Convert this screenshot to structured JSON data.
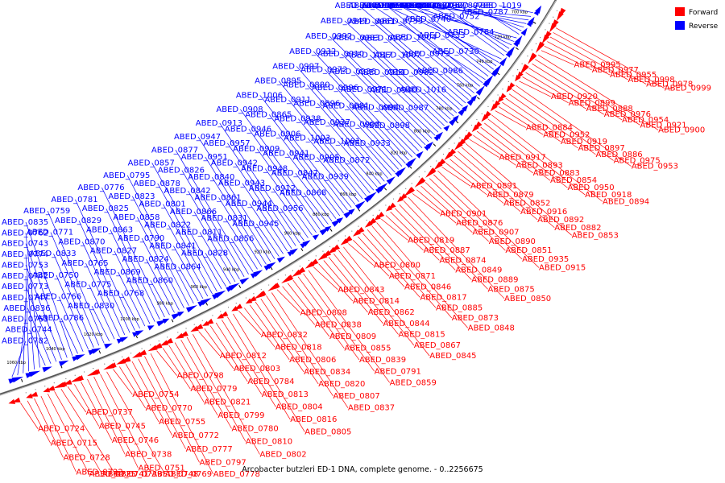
{
  "caption": "Arcobacter butzleri ED-1 DNA, complete genome. - 0..2256675",
  "legend": [
    {
      "label": "Forward",
      "color": "#ff0000"
    },
    {
      "label": "Reverse",
      "color": "#0000ff"
    }
  ],
  "colors": {
    "forward": "#ff0000",
    "reverse": "#0000ff",
    "backbone": "#777777",
    "tick": "#000000"
  },
  "ticks": [
    "700 kbp",
    "720 kbp",
    "740 kbp",
    "760 kbp",
    "780 kbp",
    "800 kbp",
    "820 kbp",
    "840 kbp",
    "860 kbp",
    "880 kbp",
    "900 kbp",
    "920 kbp",
    "940 kbp",
    "960 kbp",
    "980 kbp",
    "1000 kbp",
    "1020 kbp",
    "1040 kbp",
    "1060 kbp"
  ],
  "reverse_labels": [
    "ABED_0782",
    "ABED_0763",
    "ABED_0747",
    "ABED_0742",
    "ABED_0774",
    "ABED_0762",
    "ABED_0744",
    "ABED_0836",
    "ABED_0773",
    "ABED_0753",
    "ABED_0743",
    "ABED_0835",
    "ABED_0786",
    "ABED_0766",
    "ABED_0750",
    "ABED_0833",
    "ABED_0771",
    "ABED_0759",
    "ABED_0830",
    "ABED_0775",
    "ABED_0765",
    "ABED_0870",
    "ABED_0829",
    "ABED_0781",
    "ABED_0768",
    "ABED_0869",
    "ABED_0827",
    "ABED_0863",
    "ABED_0825",
    "ABED_0776",
    "ABED_0860",
    "ABED_0824",
    "ABED_0790",
    "ABED_0858",
    "ABED_0823",
    "ABED_0795",
    "ABED_0864",
    "ABED_0841",
    "ABED_0822",
    "ABED_0801",
    "ABED_0878",
    "ABED_0857",
    "ABED_0828",
    "ABED_0811",
    "ABED_0866",
    "ABED_0842",
    "ABED_0826",
    "ABED_0877",
    "ABED_0856",
    "ABED_0831",
    "ABED_0861",
    "ABED_0840",
    "ABED_0951",
    "ABED_0947",
    "ABED_0945",
    "ABED_0944",
    "ABED_0943",
    "ABED_0942",
    "ABED_0957",
    "ABED_0913",
    "ABED_0956",
    "ABED_0912",
    "ABED_0948",
    "ABED_0909",
    "ABED_0946",
    "ABED_0908",
    "ABED_0868",
    "ABED_0847",
    "ABED_0941",
    "ABED_0906",
    "ABED_0865",
    "ABED_1006",
    "ABED_0939",
    "ABED_0905",
    "ABED_1003",
    "ABED_0938",
    "ABED_0911",
    "ABED_0895",
    "ABED_0872",
    "ABED_1001",
    "ABED_0937",
    "ABED_0896",
    "ABED_0880",
    "ABED_0997",
    "ABED_0933",
    "ABED_0903",
    "ABED_0881",
    "ABED_0996",
    "ABED_0972",
    "ABED_0932",
    "ABED_0898",
    "ABED_0994",
    "ABED_0971",
    "ABED_0936",
    "ABED_0910",
    "ABED_0992",
    "ABED_0987",
    "ABED_0940",
    "ABED_0914",
    "ABED_1017",
    "ABED_0983",
    "ABED_0949",
    "ABED_1016",
    "ABED_0982",
    "ABED_1007",
    "ABED_0979",
    "ABED_0961",
    "ABED_1005",
    "ABED_0986",
    "ABED_0973",
    "ABED_1004",
    "ABED_0735",
    "ABED_0726",
    "ABED_0736",
    "ABED_0730",
    "ABED_0733",
    "ABED_0740",
    "ABED_0767",
    "ABED_0761",
    "ABED_0749",
    "ABED_0764",
    "ABED_0752",
    "ABED_0757",
    "ABED_0760",
    "ABED_0783",
    "ABED_0785",
    "ABED_0787",
    "ABED_0788",
    "ABED_0789",
    "ABED_0792",
    "ABED_0793",
    "ABED_1018",
    "ABED_1019"
  ],
  "forward_labels": [
    "ABED_0724",
    "ABED_0715",
    "ABED_0728",
    "ABED_0722",
    "ABED_0725",
    "ABED_0741",
    "ABED_0739",
    "ABED_0737",
    "ABED_0745",
    "ABED_0746",
    "ABED_0738",
    "ABED_0751",
    "ABED_0748",
    "ABED_0769",
    "ABED_0754",
    "ABED_0770",
    "ABED_0755",
    "ABED_0772",
    "ABED_0777",
    "ABED_0797",
    "ABED_0778",
    "ABED_0798",
    "ABED_0779",
    "ABED_0821",
    "ABED_0799",
    "ABED_0780",
    "ABED_0810",
    "ABED_0802",
    "ABED_0812",
    "ABED_0803",
    "ABED_0784",
    "ABED_0813",
    "ABED_0804",
    "ABED_0816",
    "ABED_0805",
    "ABED_0832",
    "ABED_0818",
    "ABED_0806",
    "ABED_0834",
    "ABED_0820",
    "ABED_0807",
    "ABED_0837",
    "ABED_0808",
    "ABED_0838",
    "ABED_0809",
    "ABED_0855",
    "ABED_0839",
    "ABED_0791",
    "ABED_0859",
    "ABED_0843",
    "ABED_0814",
    "ABED_0862",
    "ABED_0844",
    "ABED_0815",
    "ABED_0867",
    "ABED_0845",
    "ABED_0800",
    "ABED_0871",
    "ABED_0846",
    "ABED_0817",
    "ABED_0885",
    "ABED_0873",
    "ABED_0848",
    "ABED_0819",
    "ABED_0887",
    "ABED_0874",
    "ABED_0849",
    "ABED_0889",
    "ABED_0875",
    "ABED_0850",
    "ABED_0901",
    "ABED_0876",
    "ABED_0907",
    "ABED_0890",
    "ABED_0851",
    "ABED_0935",
    "ABED_0915",
    "ABED_0891",
    "ABED_0879",
    "ABED_0852",
    "ABED_0916",
    "ABED_0892",
    "ABED_0882",
    "ABED_0853",
    "ABED_0917",
    "ABED_0893",
    "ABED_0883",
    "ABED_0854",
    "ABED_0950",
    "ABED_0918",
    "ABED_0894",
    "ABED_0884",
    "ABED_0952",
    "ABED_0919",
    "ABED_0897",
    "ABED_0886",
    "ABED_0975",
    "ABED_0953",
    "ABED_0920",
    "ABED_0899",
    "ABED_0888",
    "ABED_0976",
    "ABED_0954",
    "ABED_0921",
    "ABED_0900",
    "ABED_0995",
    "ABED_0977",
    "ABED_0955",
    "ABED_0998",
    "ABED_0978",
    "ABED_0999"
  ]
}
